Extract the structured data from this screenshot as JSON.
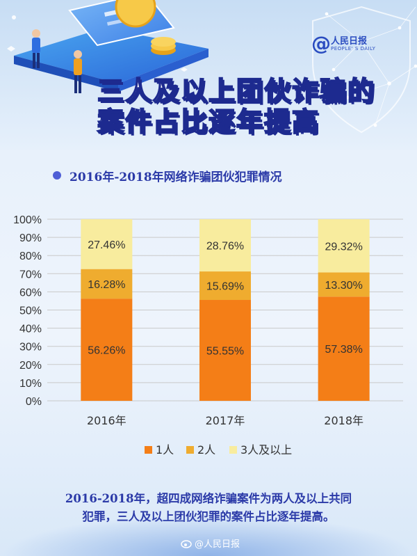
{
  "header": {
    "title_line1": "三人及以上团伙诈骗的",
    "title_line1_highlight": "诈骗",
    "title_line2": "案件占比逐年提高",
    "logo_name": "人民日报",
    "logo_en": "PEOPLE' S DAILY"
  },
  "subtitle": "2016年-2018年网络诈骗团伙犯罪情况",
  "footnote": {
    "line1": "2016-2018年，超四成网络诈骗案件为两人及以上共同",
    "line2": "犯罪，三人及以上团伙犯罪的案件占比逐年提高。"
  },
  "watermark": "@人民日报",
  "colors": {
    "one_person": "#f47e17",
    "two_persons": "#efac2f",
    "three_plus": "#f8ec9e",
    "title_blue": "#2b3aa8",
    "label_text": "#333333"
  },
  "chart_data": {
    "type": "bar",
    "stacked": true,
    "percent": true,
    "categories": [
      "2016年",
      "2017年",
      "2018年"
    ],
    "series": [
      {
        "name": "1人",
        "values": [
          56.26,
          55.55,
          57.38
        ],
        "labels": [
          "56.26%",
          "55.55%",
          "57.38%"
        ],
        "color": "#f47e17"
      },
      {
        "name": "2人",
        "values": [
          16.28,
          15.69,
          13.3
        ],
        "labels": [
          "16.28%",
          "15.69%",
          "13.30%"
        ],
        "color": "#efac2f"
      },
      {
        "name": "3人及以上",
        "values": [
          27.46,
          28.76,
          29.32
        ],
        "labels": [
          "27.46%",
          "28.76%",
          "29.32%"
        ],
        "color": "#f8ec9e"
      }
    ],
    "yticks": [
      "0%",
      "10%",
      "20%",
      "30%",
      "40%",
      "50%",
      "60%",
      "70%",
      "80%",
      "90%",
      "100%"
    ],
    "ylim": [
      0,
      100
    ],
    "grid": true,
    "legend_position": "bottom"
  }
}
